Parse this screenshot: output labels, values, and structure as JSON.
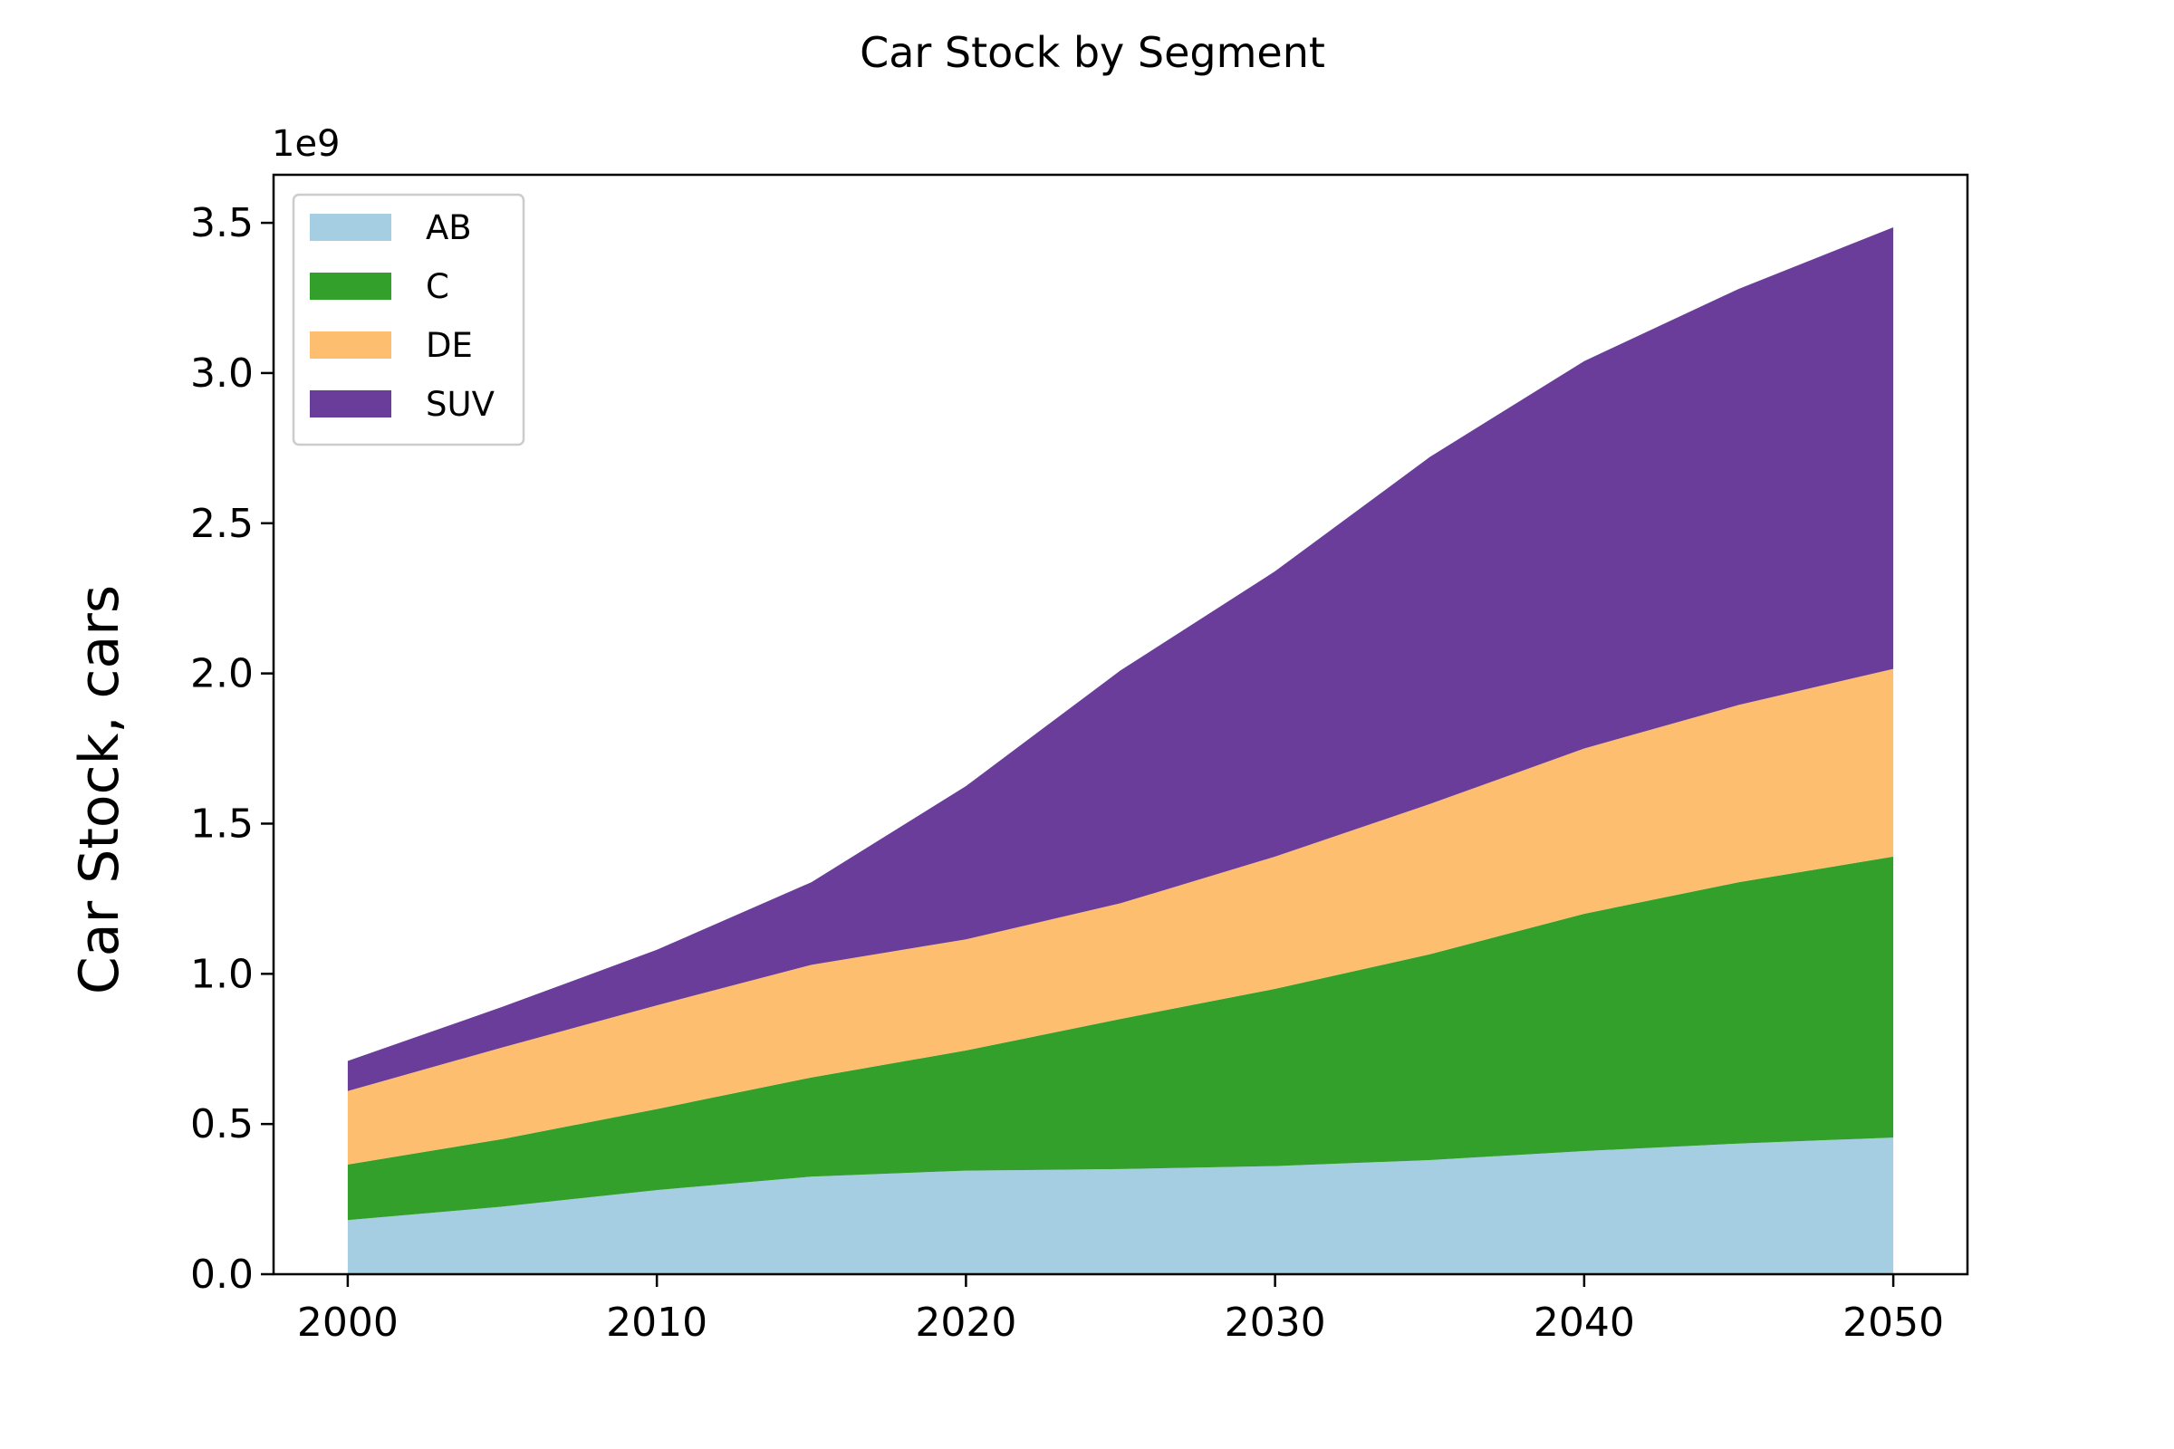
{
  "chart_data": {
    "type": "area",
    "stacked": true,
    "title": "Car Stock by Segment",
    "xlabel": "",
    "ylabel": "Car Stock, cars",
    "y_multiplier_label": "1e9",
    "x": [
      2000,
      2005,
      2010,
      2015,
      2020,
      2025,
      2030,
      2035,
      2040,
      2045,
      2050
    ],
    "series": [
      {
        "name": "AB",
        "color": "#a6cee3",
        "values": [
          0.18,
          0.225,
          0.28,
          0.325,
          0.345,
          0.35,
          0.36,
          0.38,
          0.41,
          0.435,
          0.455
        ]
      },
      {
        "name": "C",
        "color": "#33a02c",
        "values": [
          0.185,
          0.225,
          0.27,
          0.33,
          0.4,
          0.5,
          0.59,
          0.685,
          0.79,
          0.87,
          0.935
        ]
      },
      {
        "name": "DE",
        "color": "#fdbf6f",
        "values": [
          0.245,
          0.305,
          0.345,
          0.375,
          0.37,
          0.385,
          0.44,
          0.5,
          0.55,
          0.59,
          0.625
        ]
      },
      {
        "name": "SUV",
        "color": "#6a3d9a",
        "values": [
          0.1,
          0.135,
          0.185,
          0.275,
          0.51,
          0.775,
          0.95,
          1.155,
          1.29,
          1.385,
          1.47
        ]
      }
    ],
    "xlim": [
      1997.6,
      2052.4
    ],
    "ylim": [
      0,
      3.66
    ],
    "xticks": [
      2000,
      2010,
      2020,
      2030,
      2040,
      2050
    ],
    "yticks": [
      0.0,
      0.5,
      1.0,
      1.5,
      2.0,
      2.5,
      3.0,
      3.5
    ],
    "ytick_labels": [
      "0.0",
      "0.5",
      "1.0",
      "1.5",
      "2.0",
      "2.5",
      "3.0",
      "3.5"
    ],
    "grid": false,
    "legend_position": "upper-left"
  }
}
